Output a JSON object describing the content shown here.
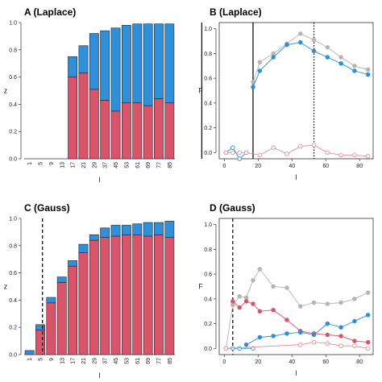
{
  "chart_data": [
    {
      "id": "A",
      "type": "bar",
      "stacked": true,
      "title": "A (Laplace)",
      "xlabel": "l",
      "ylabel": "z",
      "ylim": [
        0,
        1
      ],
      "yticks": [
        "0.0",
        "0.2",
        "0.4",
        "0.6",
        "0.8",
        "1.0"
      ],
      "categories": [
        "1",
        "5",
        "9",
        "13",
        "17",
        "21",
        "29",
        "37",
        "45",
        "53",
        "61",
        "69",
        "77",
        "85"
      ],
      "series": [
        {
          "color": "#d9546b",
          "values": [
            0,
            0,
            0,
            0,
            0.6,
            0.63,
            0.51,
            0.43,
            0.35,
            0.41,
            0.41,
            0.39,
            0.44,
            0.41
          ]
        },
        {
          "color": "#2f8fd8",
          "values": [
            0,
            0,
            0,
            0,
            0.15,
            0.2,
            0.41,
            0.51,
            0.61,
            0.57,
            0.58,
            0.6,
            0.55,
            0.58
          ]
        }
      ],
      "vlines": [
        {
          "position": 16.5,
          "style": "solid"
        },
        {
          "position": 51,
          "style": "dotted"
        }
      ]
    },
    {
      "id": "B",
      "type": "line",
      "title": "B (Laplace)",
      "xlabel": "l",
      "ylabel": "F",
      "xlim": [
        -3,
        88
      ],
      "ylim": [
        -0.05,
        1.05
      ],
      "xticks": [
        "0",
        "20",
        "40",
        "60",
        "80"
      ],
      "yticks": [
        "0.0",
        "0.2",
        "0.4",
        "0.6",
        "0.8",
        "1.0"
      ],
      "series": [
        {
          "color": "#b5b5b5",
          "filled": true,
          "x": [
            17,
            21,
            29,
            37,
            45,
            53,
            61,
            69,
            77,
            85
          ],
          "y": [
            0.57,
            0.73,
            0.8,
            0.88,
            0.96,
            0.91,
            0.85,
            0.77,
            0.7,
            0.67
          ]
        },
        {
          "color": "#2f8fd8",
          "filled": true,
          "x": [
            17,
            21,
            29,
            37,
            45,
            53,
            61,
            69,
            77,
            85
          ],
          "y": [
            0.53,
            0.66,
            0.77,
            0.87,
            0.89,
            0.82,
            0.77,
            0.72,
            0.66,
            0.63
          ]
        },
        {
          "color": "#2f8fd8",
          "filled": false,
          "x": [
            1,
            5,
            9,
            13
          ],
          "y": [
            0.0,
            0.04,
            -0.05,
            0.0
          ]
        },
        {
          "color": "#e58a9a",
          "filled": false,
          "x": [
            1,
            5,
            9,
            13,
            21,
            29,
            37,
            45,
            53,
            61,
            69,
            77,
            85
          ],
          "y": [
            0.0,
            0.0,
            0.0,
            0.0,
            -0.02,
            0.04,
            -0.01,
            0.05,
            0.06,
            0.0,
            -0.02,
            -0.02,
            -0.03
          ]
        }
      ],
      "vlines": [
        {
          "x": 17,
          "style": "solid"
        },
        {
          "x": 53,
          "style": "dotted"
        }
      ]
    },
    {
      "id": "C",
      "type": "bar",
      "stacked": true,
      "title": "C (Gauss)",
      "xlabel": "l",
      "ylabel": "z",
      "ylim": [
        0,
        1
      ],
      "yticks": [
        "0.0",
        "0.2",
        "0.4",
        "0.6",
        "0.8",
        "1.0"
      ],
      "categories": [
        "1",
        "5",
        "9",
        "13",
        "17",
        "21",
        "29",
        "37",
        "45",
        "53",
        "61",
        "69",
        "77",
        "85"
      ],
      "series": [
        {
          "color": "#d9546b",
          "values": [
            0,
            0.18,
            0.38,
            0.53,
            0.65,
            0.75,
            0.84,
            0.86,
            0.87,
            0.88,
            0.88,
            0.87,
            0.88,
            0.86
          ]
        },
        {
          "color": "#2f8fd8",
          "values": [
            0.03,
            0.04,
            0.04,
            0.04,
            0.04,
            0.06,
            0.04,
            0.07,
            0.08,
            0.07,
            0.08,
            0.1,
            0.09,
            0.12
          ]
        }
      ],
      "vlines": [
        {
          "position": 1.7,
          "style": "dashed"
        }
      ]
    },
    {
      "id": "D",
      "type": "line",
      "title": "D (Gauss)",
      "xlabel": "l",
      "ylabel": "F",
      "xlim": [
        -3,
        88
      ],
      "ylim": [
        -0.05,
        1.05
      ],
      "xticks": [
        "0",
        "20",
        "40",
        "60",
        "80"
      ],
      "yticks": [
        "0.0",
        "0.2",
        "0.4",
        "0.6",
        "0.8",
        "1.0"
      ],
      "series": [
        {
          "color": "#b5b5b5",
          "filled": true,
          "x": [
            1,
            5,
            9,
            13,
            17,
            21,
            29,
            37,
            45,
            53,
            61,
            69,
            77,
            85
          ],
          "y": [
            0.0,
            0.35,
            0.42,
            0.41,
            0.55,
            0.64,
            0.5,
            0.49,
            0.34,
            0.37,
            0.36,
            0.37,
            0.4,
            0.45
          ]
        },
        {
          "color": "#d9546b",
          "filled": true,
          "x": [
            5,
            9,
            13,
            17,
            21,
            29,
            37,
            45,
            53,
            61,
            69,
            77,
            85
          ],
          "y": [
            0.38,
            0.33,
            0.38,
            0.36,
            0.3,
            0.31,
            0.23,
            0.14,
            0.12,
            0.11,
            0.1,
            0.06,
            0.05
          ]
        },
        {
          "color": "#2f8fd8",
          "filled": true,
          "x": [
            13,
            21,
            29,
            37,
            45,
            53,
            61,
            69,
            77,
            85
          ],
          "y": [
            0.03,
            0.09,
            0.1,
            0.12,
            0.13,
            0.11,
            0.2,
            0.17,
            0.22,
            0.27
          ]
        },
        {
          "color": "#2f8fd8",
          "filled": false,
          "x": [
            1,
            5,
            9,
            17
          ],
          "y": [
            0.0,
            0.0,
            0.0,
            0.0
          ]
        },
        {
          "color": "#e58a9a",
          "filled": false,
          "x": [
            1,
            45,
            53,
            61,
            69,
            77,
            85
          ],
          "y": [
            0.0,
            0.03,
            0.05,
            0.04,
            0.02,
            0.02,
            0.0
          ]
        }
      ],
      "vlines": [
        {
          "x": 5,
          "style": "dashed"
        }
      ]
    }
  ]
}
